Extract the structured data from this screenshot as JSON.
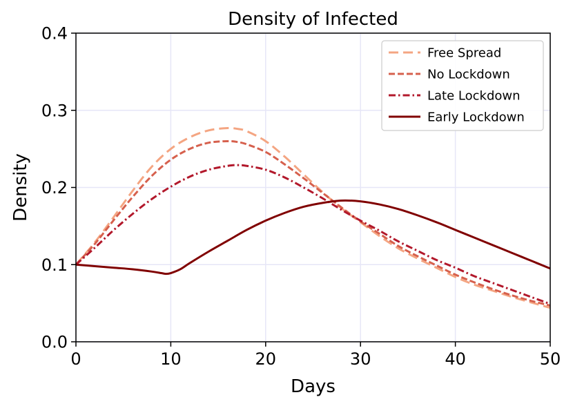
{
  "chart_data": {
    "type": "line",
    "title": "Density of Infected",
    "xlabel": "Days",
    "ylabel": "Density",
    "xlim": [
      0,
      50
    ],
    "ylim": [
      0,
      0.4
    ],
    "xticks": [
      0,
      10,
      20,
      30,
      40,
      50
    ],
    "yticks": [
      0.0,
      0.1,
      0.2,
      0.3,
      0.4
    ],
    "xtick_labels": [
      "0",
      "10",
      "20",
      "30",
      "40",
      "50"
    ],
    "ytick_labels": [
      "0.0",
      "0.1",
      "0.2",
      "0.3",
      "0.4"
    ],
    "grid": true,
    "legend_position": "top-right",
    "series": [
      {
        "name": "Free Spread",
        "color": "#f4a582",
        "dash": "long-dashed",
        "x": [
          0,
          2,
          4,
          6,
          8,
          10,
          12,
          14,
          16,
          17,
          18,
          20,
          22,
          24,
          26,
          28,
          30,
          32,
          34,
          36,
          38,
          40,
          42,
          44,
          46,
          48,
          50
        ],
        "y": [
          0.1,
          0.129,
          0.162,
          0.196,
          0.227,
          0.25,
          0.265,
          0.274,
          0.277,
          0.276,
          0.273,
          0.26,
          0.24,
          0.217,
          0.194,
          0.173,
          0.155,
          0.137,
          0.121,
          0.108,
          0.096,
          0.084,
          0.074,
          0.066,
          0.058,
          0.051,
          0.044
        ]
      },
      {
        "name": "No Lockdown",
        "color": "#d6604d",
        "dash": "dashed",
        "x": [
          0,
          2,
          4,
          6,
          8,
          10,
          12,
          14,
          16,
          17,
          18,
          20,
          22,
          24,
          26,
          28,
          30,
          32,
          34,
          36,
          38,
          40,
          42,
          44,
          46,
          48,
          50
        ],
        "y": [
          0.1,
          0.127,
          0.158,
          0.188,
          0.215,
          0.236,
          0.25,
          0.258,
          0.26,
          0.259,
          0.256,
          0.246,
          0.23,
          0.212,
          0.193,
          0.174,
          0.156,
          0.14,
          0.124,
          0.111,
          0.099,
          0.087,
          0.077,
          0.068,
          0.06,
          0.053,
          0.047
        ]
      },
      {
        "name": "Late Lockdown",
        "color": "#b2182b",
        "dash": "dash-dot",
        "x": [
          0,
          2,
          4,
          6,
          8,
          10,
          12,
          14,
          16,
          17,
          18,
          20,
          22,
          24,
          26,
          28,
          30,
          32,
          34,
          36,
          38,
          40,
          42,
          44,
          46,
          48,
          50
        ],
        "y": [
          0.1,
          0.122,
          0.145,
          0.166,
          0.185,
          0.201,
          0.214,
          0.223,
          0.228,
          0.229,
          0.228,
          0.223,
          0.213,
          0.2,
          0.186,
          0.171,
          0.157,
          0.144,
          0.13,
          0.118,
          0.106,
          0.096,
          0.085,
          0.076,
          0.067,
          0.058,
          0.049
        ]
      },
      {
        "name": "Early Lockdown",
        "color": "#800000",
        "dash": "solid",
        "x": [
          0,
          2,
          4,
          6,
          8,
          9,
          9.5,
          10,
          11,
          12,
          14,
          16,
          18,
          20,
          22,
          24,
          26,
          28,
          30,
          32,
          34,
          36,
          38,
          40,
          42,
          44,
          46,
          48,
          50
        ],
        "y": [
          0.1,
          0.098,
          0.096,
          0.094,
          0.091,
          0.089,
          0.088,
          0.089,
          0.094,
          0.102,
          0.117,
          0.131,
          0.145,
          0.157,
          0.167,
          0.175,
          0.18,
          0.183,
          0.182,
          0.178,
          0.172,
          0.164,
          0.155,
          0.145,
          0.135,
          0.125,
          0.115,
          0.105,
          0.095
        ]
      }
    ]
  }
}
